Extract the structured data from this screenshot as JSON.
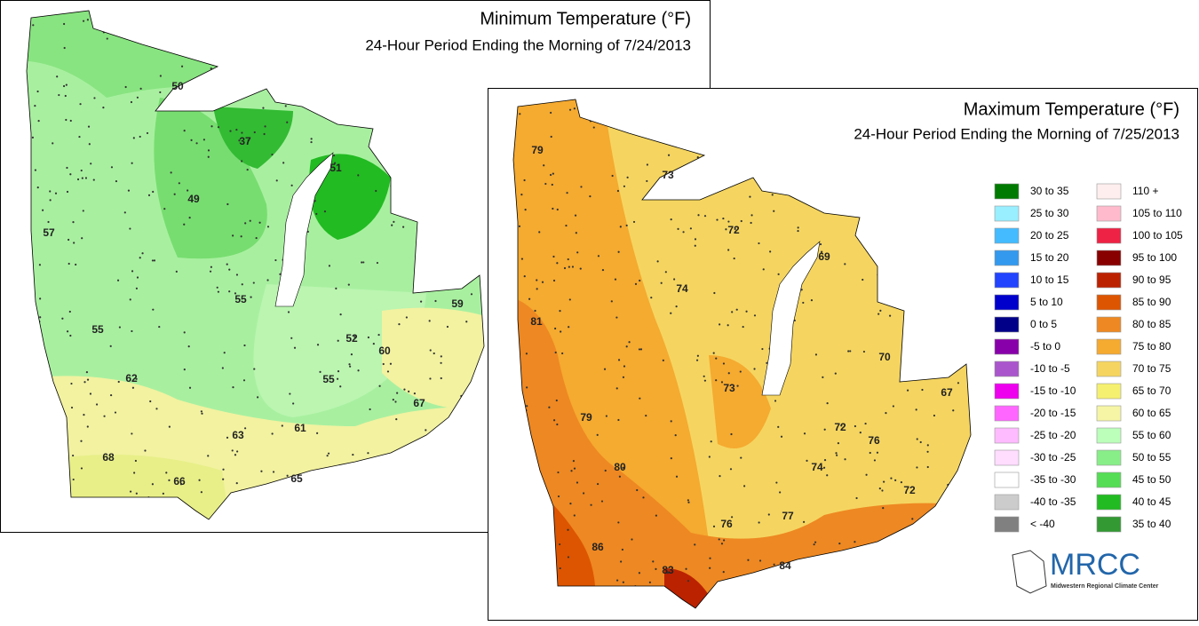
{
  "maps": [
    {
      "title": "Minimum Temperature (°F)",
      "subtitle": "24-Hour Period Ending the Morning of 7/24/2013",
      "labels": [
        "50",
        "37",
        "51",
        "49",
        "57",
        "55",
        "59",
        "55",
        "52",
        "60",
        "62",
        "55",
        "67",
        "63",
        "61",
        "68",
        "66",
        "65"
      ]
    },
    {
      "title": "Maximum Temperature (°F)",
      "subtitle": "24-Hour Period Ending the Morning of 7/25/2013",
      "labels": [
        "79",
        "73",
        "72",
        "69",
        "74",
        "81",
        "70",
        "73",
        "67",
        "79",
        "72",
        "76",
        "74",
        "80",
        "72",
        "77",
        "86",
        "76",
        "84",
        "83"
      ]
    }
  ],
  "legend": [
    [
      {
        "label": "30 to 35",
        "color": "#007a00"
      },
      {
        "label": "25 to 30",
        "color": "#99eeff"
      },
      {
        "label": "20 to 25",
        "color": "#44bbff"
      },
      {
        "label": "15 to 20",
        "color": "#3399ee"
      },
      {
        "label": "10 to 15",
        "color": "#2244ff"
      },
      {
        "label": "5 to 10",
        "color": "#0000cc"
      },
      {
        "label": "0 to 5",
        "color": "#000088"
      },
      {
        "label": "-5 to 0",
        "color": "#8800aa"
      },
      {
        "label": "-10 to -5",
        "color": "#aa55cc"
      },
      {
        "label": "-15 to -10",
        "color": "#ee00ee"
      },
      {
        "label": "-20 to -15",
        "color": "#ff66ff"
      },
      {
        "label": "-25 to -20",
        "color": "#ffbbff"
      },
      {
        "label": "-30 to -25",
        "color": "#ffddff"
      },
      {
        "label": "-35 to -30",
        "color": "#ffffff"
      },
      {
        "label": "-40 to -35",
        "color": "#cccccc"
      },
      {
        "label": "< -40",
        "color": "#808080"
      }
    ],
    [
      {
        "label": "110 +",
        "color": "#ffeeee"
      },
      {
        "label": "105 to 110",
        "color": "#ffbbcc"
      },
      {
        "label": "100 to 105",
        "color": "#ee2244"
      },
      {
        "label": "95 to 100",
        "color": "#880000"
      },
      {
        "label": "90 to 95",
        "color": "#bb2200"
      },
      {
        "label": "85 to 90",
        "color": "#dd5500"
      },
      {
        "label": "80 to 85",
        "color": "#ee8822"
      },
      {
        "label": "75 to 80",
        "color": "#f5aa30"
      },
      {
        "label": "70 to 75",
        "color": "#f5d560"
      },
      {
        "label": "65 to 70",
        "color": "#f5f070"
      },
      {
        "label": "60 to 65",
        "color": "#f5f5a5"
      },
      {
        "label": "55 to 60",
        "color": "#bbffbb"
      },
      {
        "label": "50 to 55",
        "color": "#88ee88"
      },
      {
        "label": "45 to 50",
        "color": "#55dd55"
      },
      {
        "label": "40 to 45",
        "color": "#22bb22"
      },
      {
        "label": "35 to 40",
        "color": "#339933"
      }
    ]
  ],
  "logo": {
    "name": "MRCC",
    "caption": "Midwestern Regional Climate Center"
  }
}
